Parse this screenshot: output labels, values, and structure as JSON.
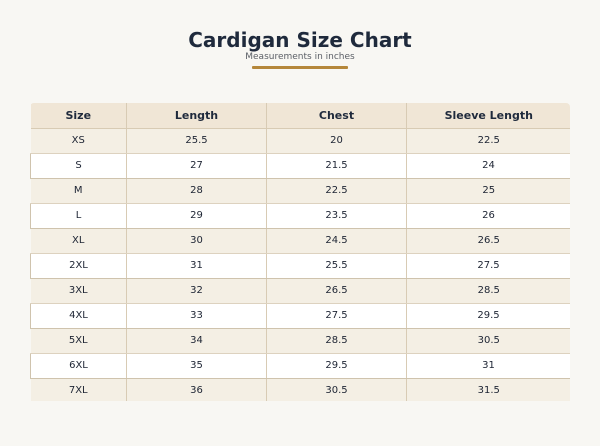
{
  "header": {
    "title": "Cardigan Size Chart",
    "subtitle": "Measurements in inches",
    "accent_color": "#b5873a"
  },
  "table": {
    "columns": [
      "Size",
      "Length",
      "Chest",
      "Sleeve Length"
    ],
    "rows": [
      [
        "XS",
        "25.5",
        "20",
        "22.5"
      ],
      [
        "S",
        "27",
        "21.5",
        "24"
      ],
      [
        "M",
        "28",
        "22.5",
        "25"
      ],
      [
        "L",
        "29",
        "23.5",
        "26"
      ],
      [
        "XL",
        "30",
        "24.5",
        "26.5"
      ],
      [
        "2XL",
        "31",
        "25.5",
        "27.5"
      ],
      [
        "3XL",
        "32",
        "26.5",
        "28.5"
      ],
      [
        "4XL",
        "33",
        "27.5",
        "29.5"
      ],
      [
        "5XL",
        "34",
        "28.5",
        "30.5"
      ],
      [
        "6XL",
        "35",
        "29.5",
        "31"
      ],
      [
        "7XL",
        "36",
        "30.5",
        "31.5"
      ]
    ]
  }
}
